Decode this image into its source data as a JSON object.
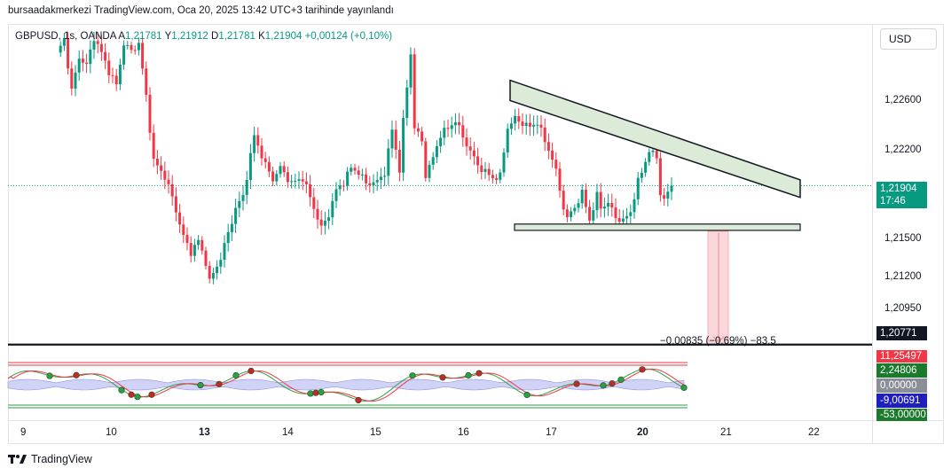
{
  "caption": "bursaadakmerkezi TradingView.com, Oca 20, 2025 13:42 UTC+3 tarihinde yayınlandı",
  "legend": {
    "symbol": "GBPUSD, 1s, OANDA",
    "open_label": "A",
    "open": "1,21781",
    "high_label": "Y",
    "high": "1,21912",
    "low_label": "D",
    "low": "1,21781",
    "close_label": "K",
    "close": "1,21904",
    "change": "+0,00124 (+0,10%)"
  },
  "currency": "USD",
  "brand": "TradingView",
  "price_axis": [
    "1,22600",
    "1,22200",
    "1,21500",
    "1,21200",
    "1,20950"
  ],
  "date_axis": [
    "9",
    "10",
    "13",
    "14",
    "15",
    "16",
    "17",
    "20",
    "21",
    "22"
  ],
  "tags": {
    "last_price": "1,21904",
    "countdown": "17:46",
    "target": "1,20771",
    "ind_1": "11,25497",
    "ind_2": "2,24806",
    "ind_3": "0,00000",
    "ind_4": "-9,00691",
    "ind_5": "-53,00000"
  },
  "measure_text": "−0,00835 (−0,69%) −83,5",
  "colors": {
    "up": "#089981",
    "down": "#f23645",
    "pattern_fill": "#dcebd8",
    "projection": "#f7c6ca",
    "indicator_band": "#b2b5f0",
    "target_line": "#131722",
    "dot_green": "#2f9e44",
    "dot_red": "#c62828"
  },
  "chart_data": {
    "type": "candlestick",
    "symbol": "GBPUSD",
    "interval": "1s",
    "x": [
      "9",
      "10",
      "13",
      "14",
      "15",
      "16",
      "17",
      "20",
      "21",
      "22"
    ],
    "y_ticks": [
      1.226,
      1.222,
      1.215,
      1.212,
      1.2095
    ],
    "ylim": [
      1.207,
      1.2305
    ],
    "last_close": 1.21904,
    "anchors": [
      [
        0,
        1.2284
      ],
      [
        2,
        1.2295
      ],
      [
        4,
        1.2258
      ],
      [
        6,
        1.2282
      ],
      [
        8,
        1.2276
      ],
      [
        10,
        1.2296
      ],
      [
        12,
        1.2285
      ],
      [
        14,
        1.2272
      ],
      [
        16,
        1.2262
      ],
      [
        18,
        1.2292
      ],
      [
        20,
        1.2286
      ],
      [
        22,
        1.2292
      ],
      [
        24,
        1.2254
      ],
      [
        26,
        1.2208
      ],
      [
        29,
        1.2197
      ],
      [
        31,
        1.2182
      ],
      [
        34,
        1.2154
      ],
      [
        36,
        1.2143
      ],
      [
        38,
        1.2151
      ],
      [
        40,
        1.2136
      ],
      [
        41,
        1.2122
      ],
      [
        44,
        1.2139
      ],
      [
        48,
        1.2174
      ],
      [
        50,
        1.2183
      ],
      [
        53,
        1.2226
      ],
      [
        56,
        1.2205
      ],
      [
        58,
        1.2195
      ],
      [
        60,
        1.2203
      ],
      [
        63,
        1.2192
      ],
      [
        66,
        1.2196
      ],
      [
        68,
        1.2182
      ],
      [
        71,
        1.216
      ],
      [
        73,
        1.217
      ],
      [
        75,
        1.2187
      ],
      [
        77,
        1.2193
      ],
      [
        79,
        1.2203
      ],
      [
        81,
        1.22
      ],
      [
        83,
        1.2192
      ],
      [
        86,
        1.2193
      ],
      [
        88,
        1.22
      ],
      [
        90,
        1.223
      ],
      [
        92,
        1.2202
      ],
      [
        93,
        1.2236
      ],
      [
        95,
        1.2285
      ],
      [
        96,
        1.2232
      ],
      [
        98,
        1.2222
      ],
      [
        99,
        1.2198
      ],
      [
        101,
        1.221
      ],
      [
        103,
        1.2227
      ],
      [
        105,
        1.2231
      ],
      [
        107,
        1.2237
      ],
      [
        109,
        1.2225
      ],
      [
        111,
        1.2215
      ],
      [
        113,
        1.2205
      ],
      [
        115,
        1.22
      ],
      [
        117,
        1.2196
      ],
      [
        119,
        1.2197
      ],
      [
        121,
        1.2232
      ],
      [
        123,
        1.2238
      ],
      [
        125,
        1.2235
      ],
      [
        127,
        1.2232
      ],
      [
        129,
        1.2236
      ],
      [
        131,
        1.2222
      ],
      [
        133,
        1.221
      ],
      [
        134,
        1.22
      ],
      [
        136,
        1.2175
      ],
      [
        137,
        1.2167
      ],
      [
        139,
        1.2175
      ],
      [
        141,
        1.2185
      ],
      [
        143,
        1.2166
      ],
      [
        145,
        1.2183
      ],
      [
        146,
        1.2175
      ],
      [
        148,
        1.2178
      ],
      [
        150,
        1.2168
      ],
      [
        152,
        1.2165
      ],
      [
        154,
        1.2172
      ],
      [
        156,
        1.2193
      ],
      [
        158,
        1.2208
      ],
      [
        159,
        1.2215
      ],
      [
        161,
        1.2211
      ],
      [
        162,
        1.2185
      ],
      [
        163,
        1.218
      ],
      [
        165,
        1.21904
      ]
    ],
    "triangle_upper": [
      [
        1.22655,
        1.2251
      ],
      [
        1.21945,
        1.2182
      ]
    ],
    "triangle_base": [
      1.2163,
      1.21585
    ],
    "projection_target": 1.20771,
    "projection_change": "−0,00835 (−0,69%) −83,5",
    "indicator_levels": [
      "11,25497",
      "2,24806",
      "0,00000",
      "-9,00691",
      "-53,00000"
    ]
  }
}
